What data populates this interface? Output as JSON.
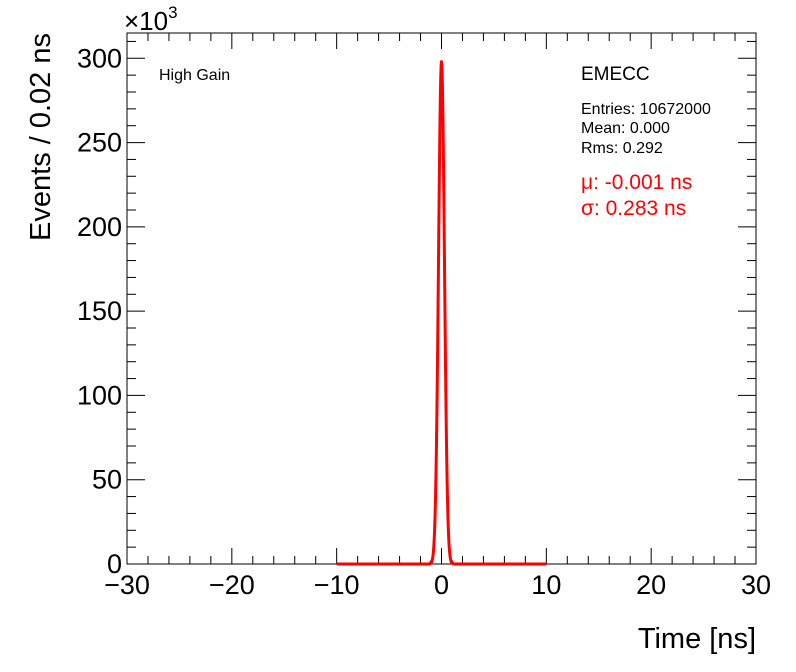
{
  "chart_data": {
    "type": "histogram",
    "xlabel": "Time [ns]",
    "ylabel": "Events / 0.02 ns",
    "y_multiplier": "×10",
    "y_multiplier_exponent": "3",
    "xlim": [
      -30,
      30
    ],
    "ylim": [
      0,
      315
    ],
    "x_ticks": [
      -30,
      -20,
      -10,
      0,
      10,
      20,
      30
    ],
    "x_tick_labels": [
      "−30",
      "−20",
      "−10",
      "0",
      "10",
      "20",
      "30"
    ],
    "y_ticks": [
      0,
      50,
      100,
      150,
      200,
      250,
      300
    ],
    "y_tick_labels": [
      "0",
      "50",
      "100",
      "150",
      "200",
      "250",
      "300"
    ],
    "legend": {
      "gain": "High Gain",
      "detector": "EMECC",
      "entries": "Entries: 10672000",
      "mean": "Mean: 0.000",
      "rms": "Rms: 0.292",
      "fit_mu": "μ: -0.001 ns",
      "fit_sigma": "σ: 0.283 ns"
    },
    "series": [
      {
        "style": "histogram",
        "color": "#000000",
        "x": [
          -1.2,
          -0.9,
          -0.7,
          -0.5,
          -0.4,
          -0.3,
          -0.2,
          -0.1,
          0.0,
          0.1,
          0.2,
          0.3,
          0.4,
          0.5,
          0.7,
          0.9,
          1.2
        ],
        "y": [
          0,
          3,
          15,
          50,
          95,
          150,
          215,
          270,
          298,
          268,
          212,
          148,
          92,
          48,
          14,
          3,
          0
        ]
      },
      {
        "style": "fit",
        "color": "#ff0000",
        "mu": -0.001,
        "sigma": 0.283,
        "amplitude": 298,
        "x_range": [
          -10,
          10
        ]
      }
    ]
  }
}
